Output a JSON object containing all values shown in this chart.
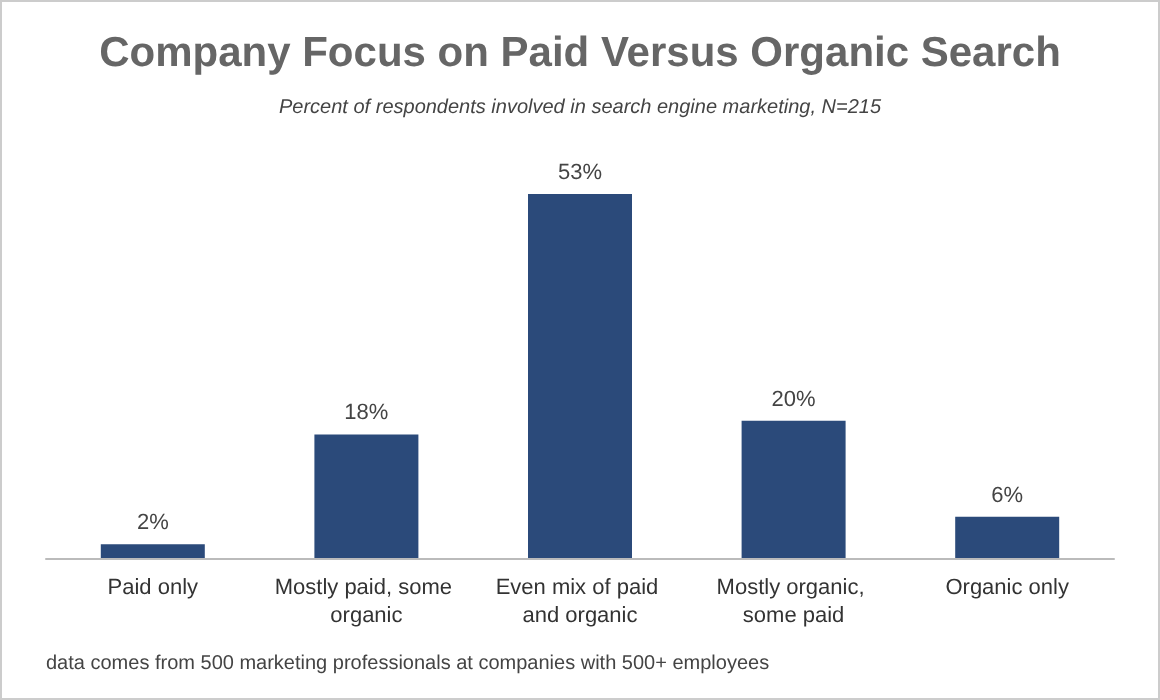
{
  "chart_data": {
    "type": "bar",
    "title": "Company Focus on Paid Versus Organic Search",
    "subtitle": "Percent of respondents involved in search engine marketing, N=215",
    "categories": [
      "Paid only",
      "Mostly paid, some organic",
      "Even mix of paid and organic",
      "Mostly organic, some paid",
      "Organic only"
    ],
    "values": [
      2,
      18,
      53,
      20,
      6
    ],
    "value_labels": [
      "2%",
      "18%",
      "53%",
      "20%",
      "6%"
    ],
    "color": "#2b4a7a",
    "grid": false,
    "annotations": [
      "data comes from 500 marketing professionals at companies with 500+ employees"
    ]
  }
}
